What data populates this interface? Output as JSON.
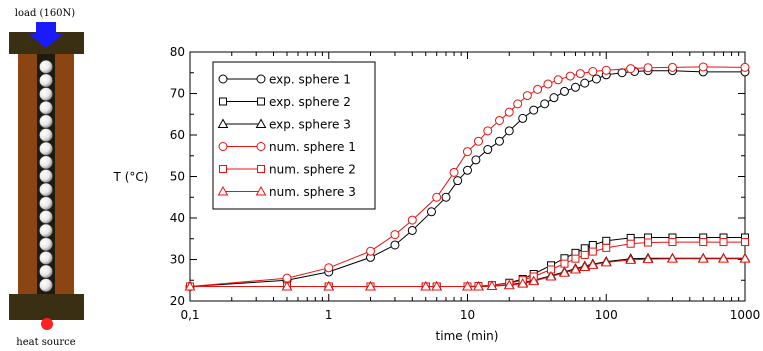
{
  "setup": {
    "load_label": "load (160N)",
    "heat_label": "heat source",
    "sphere_count": 17,
    "colors": {
      "rod": "#8B4513",
      "cap": "#3a2f12",
      "arrow": "#1a1aff",
      "heat": "#ff2020",
      "sphere": "#e8e8e8"
    }
  },
  "chart_data": {
    "type": "line",
    "xscale": "log",
    "xlim": [
      0.1,
      1000
    ],
    "ylim": [
      20,
      80
    ],
    "xlabel": "time (min)",
    "ylabel": "T (°C)",
    "xticks": [
      0.1,
      1,
      10,
      100,
      1000
    ],
    "xtick_labels": [
      "0,1",
      "1",
      "10",
      "100",
      "1000"
    ],
    "yticks": [
      20,
      30,
      40,
      50,
      60,
      70,
      80
    ],
    "ytick_labels": [
      "20",
      "30",
      "40",
      "50",
      "60",
      "70",
      "80"
    ],
    "grid": false,
    "legend_position": "top-left",
    "series": [
      {
        "name": "exp. sphere 1",
        "color": "#000000",
        "marker": "circle",
        "x": [
          0.1,
          0.5,
          1,
          2,
          3,
          4,
          5.5,
          7,
          8.5,
          10,
          11.5,
          14,
          17,
          20,
          25,
          30,
          36,
          42,
          50,
          60,
          70,
          85,
          100,
          130,
          160,
          200,
          300,
          500,
          1000
        ],
        "y": [
          23.5,
          25,
          27,
          30.5,
          33.5,
          37,
          41.5,
          45,
          49,
          51.5,
          54,
          56.5,
          58.5,
          61,
          64,
          66,
          67.5,
          69,
          70.5,
          71.5,
          72.5,
          73.5,
          74.5,
          75,
          75.3,
          75.5,
          75.5,
          75.2,
          75.2
        ]
      },
      {
        "name": "exp. sphere 2",
        "color": "#000000",
        "marker": "square",
        "x": [
          0.1,
          0.5,
          1,
          2,
          5,
          6,
          10,
          12,
          15,
          20,
          25,
          30,
          40,
          50,
          60,
          70,
          80,
          100,
          150,
          200,
          300,
          500,
          700,
          1000
        ],
        "y": [
          23.5,
          23.5,
          23.5,
          23.5,
          23.5,
          23.5,
          23.5,
          23.6,
          23.8,
          24.4,
          25.3,
          26.5,
          28.6,
          30.3,
          31.6,
          32.7,
          33.5,
          34.5,
          35.2,
          35.3,
          35.3,
          35.3,
          35.3,
          35.3
        ]
      },
      {
        "name": "exp. sphere 3",
        "color": "#000000",
        "marker": "triangle",
        "x": [
          0.1,
          0.5,
          1,
          2,
          5,
          6,
          10,
          12,
          15,
          20,
          25,
          30,
          40,
          50,
          60,
          70,
          80,
          100,
          150,
          200,
          300,
          500,
          700,
          1000
        ],
        "y": [
          23.5,
          23.5,
          23.5,
          23.5,
          23.5,
          23.5,
          23.5,
          23.5,
          23.6,
          23.9,
          24.4,
          25,
          26.1,
          27,
          27.8,
          28.4,
          28.9,
          29.5,
          30.2,
          30.3,
          30.3,
          30.3,
          30.3,
          30.3
        ]
      },
      {
        "name": "num. sphere 1",
        "color": "#e8130f",
        "marker": "circle",
        "x": [
          0.1,
          0.5,
          1,
          2,
          3,
          4,
          6,
          8,
          10,
          12,
          14,
          17,
          20,
          23,
          27,
          32,
          38,
          45,
          55,
          65,
          80,
          100,
          150,
          200,
          300,
          500,
          1000
        ],
        "y": [
          23.5,
          25.5,
          28,
          32,
          36,
          39.5,
          45,
          51,
          56,
          58.5,
          61,
          63.5,
          65.5,
          67.5,
          69.5,
          71,
          72.3,
          73.3,
          74.2,
          74.8,
          75.3,
          75.6,
          76,
          76.2,
          76.3,
          76.4,
          76.3
        ]
      },
      {
        "name": "num. sphere 2",
        "color": "#e8130f",
        "marker": "square",
        "x": [
          0.1,
          0.5,
          1,
          2,
          5,
          6,
          10,
          12,
          15,
          20,
          25,
          30,
          40,
          50,
          60,
          70,
          80,
          100,
          150,
          200,
          300,
          500,
          700,
          1000
        ],
        "y": [
          23.5,
          23.5,
          23.5,
          23.5,
          23.5,
          23.5,
          23.5,
          23.6,
          23.8,
          24.3,
          25,
          25.9,
          27.6,
          29,
          30.2,
          31.1,
          31.9,
          32.8,
          33.8,
          34.1,
          34.2,
          34.2,
          34.2,
          34.2
        ]
      },
      {
        "name": "num. sphere 3",
        "color": "#e8130f",
        "marker": "triangle",
        "x": [
          0.1,
          0.5,
          1,
          2,
          5,
          6,
          10,
          12,
          15,
          20,
          25,
          30,
          40,
          50,
          60,
          70,
          80,
          100,
          150,
          200,
          300,
          500,
          700,
          1000
        ],
        "y": [
          23.5,
          23.5,
          23.5,
          23.5,
          23.5,
          23.5,
          23.5,
          23.5,
          23.6,
          23.8,
          24.2,
          24.8,
          25.9,
          26.8,
          27.6,
          28.2,
          28.7,
          29.3,
          29.9,
          30.1,
          30.2,
          30.2,
          30.2,
          30.2
        ]
      }
    ]
  }
}
